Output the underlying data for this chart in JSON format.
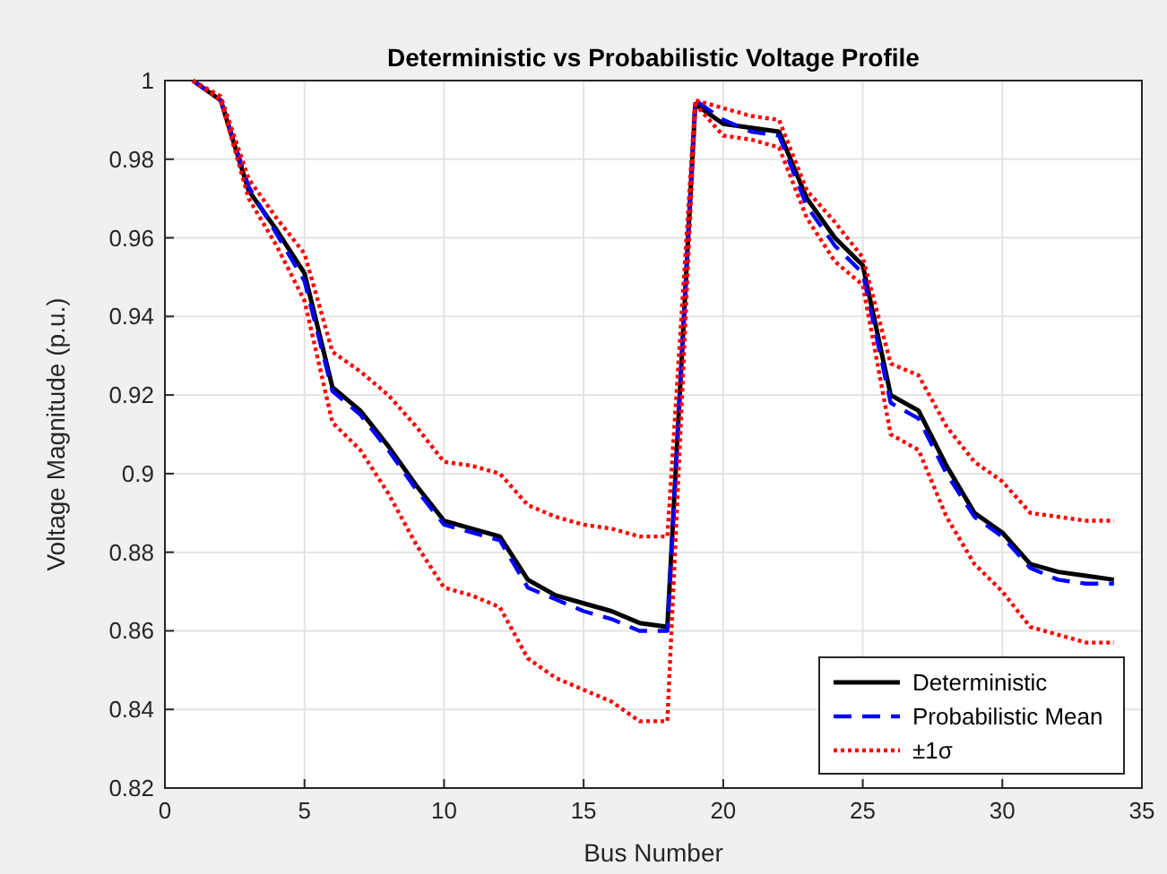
{
  "chart_data": {
    "type": "line",
    "title": "Deterministic vs Probabilistic Voltage Profile",
    "xlabel": "Bus Number",
    "ylabel": "Voltage Magnitude (p.u.)",
    "x": [
      1,
      2,
      3,
      4,
      5,
      6,
      7,
      8,
      9,
      10,
      11,
      12,
      13,
      14,
      15,
      16,
      17,
      18,
      19,
      20,
      21,
      22,
      23,
      24,
      25,
      26,
      27,
      28,
      29,
      30,
      31,
      32,
      33,
      34
    ],
    "xlim": [
      0,
      35
    ],
    "xticks": [
      0,
      5,
      10,
      15,
      20,
      25,
      30,
      35
    ],
    "ylim": [
      0.82,
      1
    ],
    "yticks": [
      0.82,
      0.84,
      0.86,
      0.88,
      0.9,
      0.92,
      0.94,
      0.96,
      0.98,
      1
    ],
    "grid": true,
    "legend": "bottom right",
    "marker": "none",
    "series": [
      {
        "name": "Deterministic",
        "color": "#000000",
        "line_style": "solid",
        "values": [
          1,
          0.995,
          0.972,
          0.962,
          0.951,
          0.922,
          0.916,
          0.907,
          0.897,
          0.888,
          0.886,
          0.884,
          0.873,
          0.869,
          0.867,
          0.865,
          0.862,
          0.861,
          0.994,
          0.989,
          0.988,
          0.987,
          0.97,
          0.96,
          0.953,
          0.92,
          0.916,
          0.902,
          0.89,
          0.885,
          0.877,
          0.875,
          0.874,
          0.873
        ]
      },
      {
        "name": "Probabilistic Mean",
        "color": "#0000ff",
        "line_style": "dashed",
        "values": [
          1,
          0.995,
          0.973,
          0.961,
          0.949,
          0.921,
          0.915,
          0.906,
          0.896,
          0.887,
          0.885,
          0.883,
          0.871,
          0.868,
          0.865,
          0.863,
          0.86,
          0.86,
          0.995,
          0.99,
          0.987,
          0.986,
          0.968,
          0.958,
          0.951,
          0.918,
          0.914,
          0.9,
          0.889,
          0.884,
          0.876,
          0.873,
          0.872,
          0.872
        ]
      },
      {
        "name": "±1σ",
        "color": "#ff0000",
        "line_style": "dotted",
        "values": [
          1,
          0.996,
          0.975,
          0.965,
          0.956,
          0.931,
          0.926,
          0.92,
          0.912,
          0.903,
          0.902,
          0.9,
          0.892,
          0.889,
          0.887,
          0.886,
          0.884,
          0.884,
          0.995,
          0.993,
          0.991,
          0.99,
          0.972,
          0.964,
          0.955,
          0.928,
          0.925,
          0.912,
          0.903,
          0.898,
          0.89,
          0.889,
          0.888,
          0.888
        ]
      },
      {
        "color": "#ff0000",
        "line_style": "dotted",
        "values": [
          1,
          0.995,
          0.97,
          0.958,
          0.944,
          0.913,
          0.906,
          0.895,
          0.882,
          0.871,
          0.869,
          0.866,
          0.853,
          0.848,
          0.845,
          0.842,
          0.837,
          0.837,
          0.994,
          0.986,
          0.985,
          0.983,
          0.965,
          0.954,
          0.948,
          0.91,
          0.906,
          0.889,
          0.877,
          0.87,
          0.861,
          0.859,
          0.857,
          0.857
        ]
      }
    ]
  }
}
